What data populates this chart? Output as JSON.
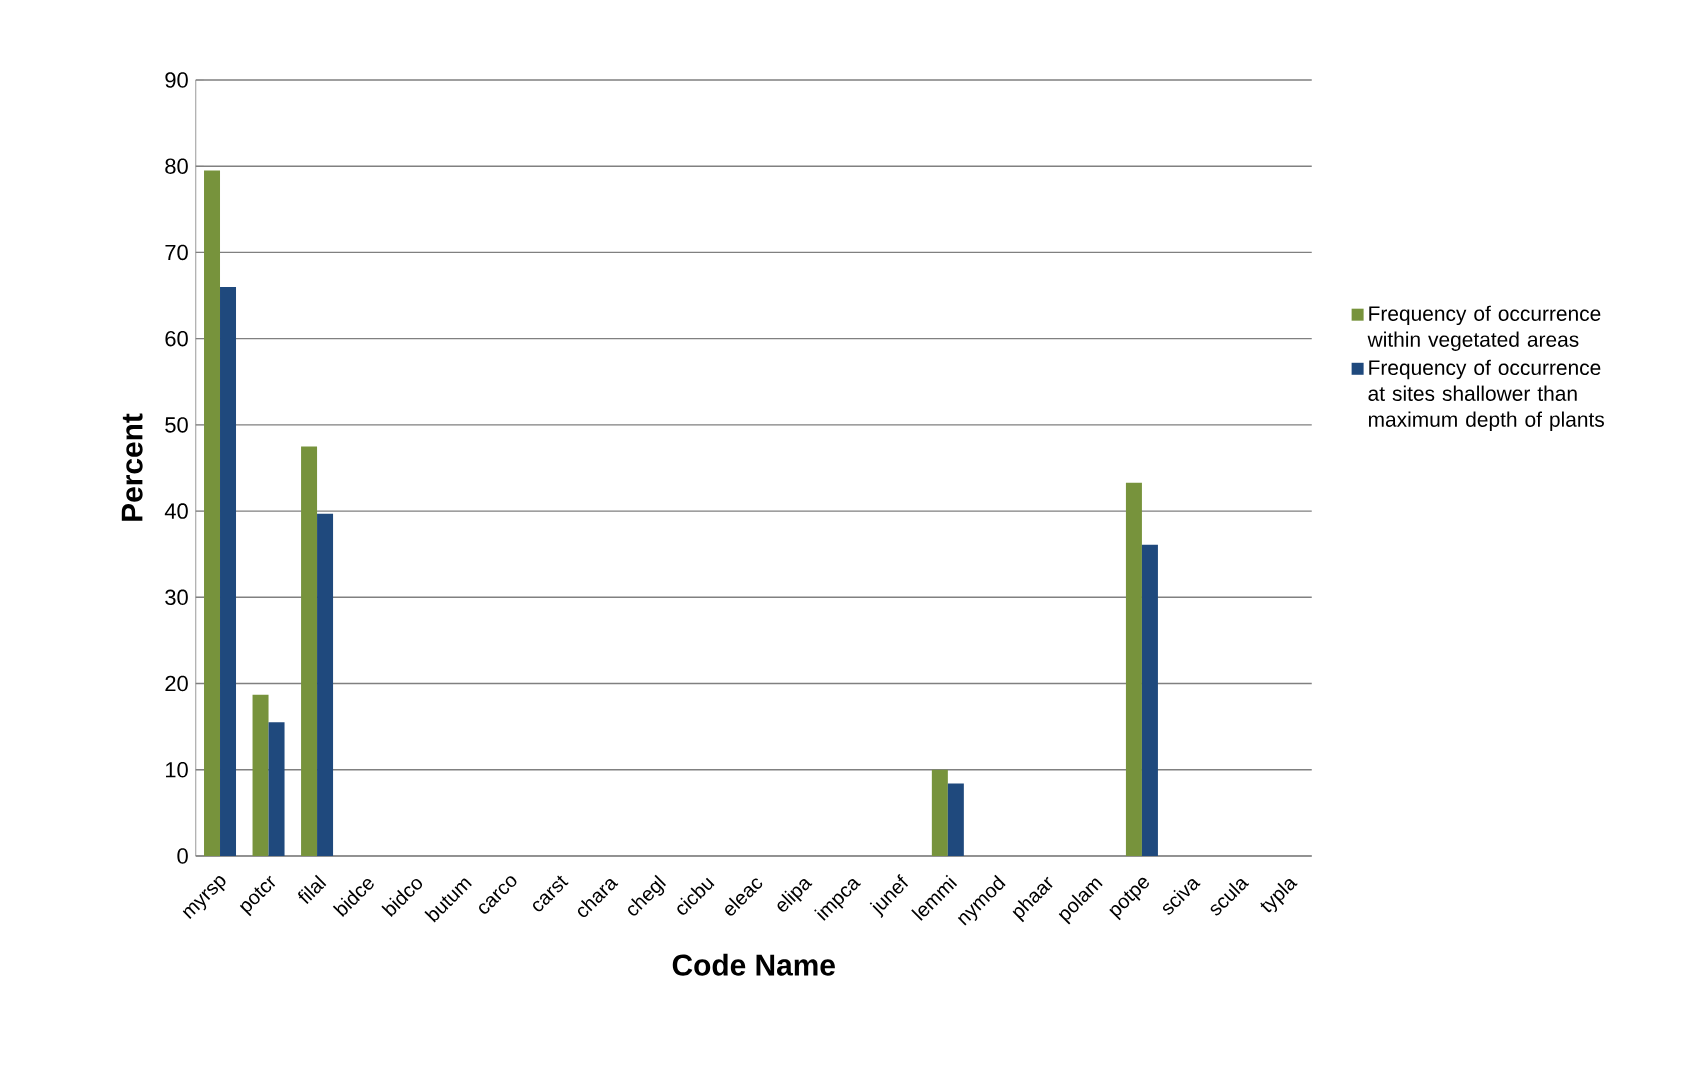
{
  "chart_data": {
    "type": "bar",
    "xlabel": "Code Name",
    "ylabel": "Percent",
    "categories": [
      "myrsp",
      "potcr",
      "filal",
      "bidce",
      "bidco",
      "butum",
      "carco",
      "carst",
      "chara",
      "chegl",
      "cicbu",
      "eleac",
      "elipa",
      "impca",
      "junef",
      "lemmi",
      "nymod",
      "phaar",
      "polam",
      "potpe",
      "sciva",
      "scula",
      "typla"
    ],
    "series": [
      {
        "name": "Frequency of occurrence within vegetated areas",
        "color": "#77933c",
        "values": [
          79.5,
          18.7,
          47.5,
          0,
          0,
          0,
          0,
          0,
          0,
          0,
          0,
          0,
          0,
          0,
          0,
          10,
          0,
          0,
          0,
          43.3,
          0,
          0,
          0
        ]
      },
      {
        "name": "Frequency of occurrence at sites shallower than maximum depth of plants",
        "color": "#1f497d",
        "values": [
          66,
          15.5,
          39.7,
          0,
          0,
          0,
          0,
          0,
          0,
          0,
          0,
          0,
          0,
          0,
          0,
          8.4,
          0,
          0,
          0,
          36.1,
          0,
          0,
          0
        ]
      }
    ],
    "ylim": [
      0,
      90
    ],
    "yticks": [
      0,
      10,
      20,
      30,
      40,
      50,
      60,
      70,
      80,
      90
    ],
    "grid": "y",
    "legend": "right"
  }
}
